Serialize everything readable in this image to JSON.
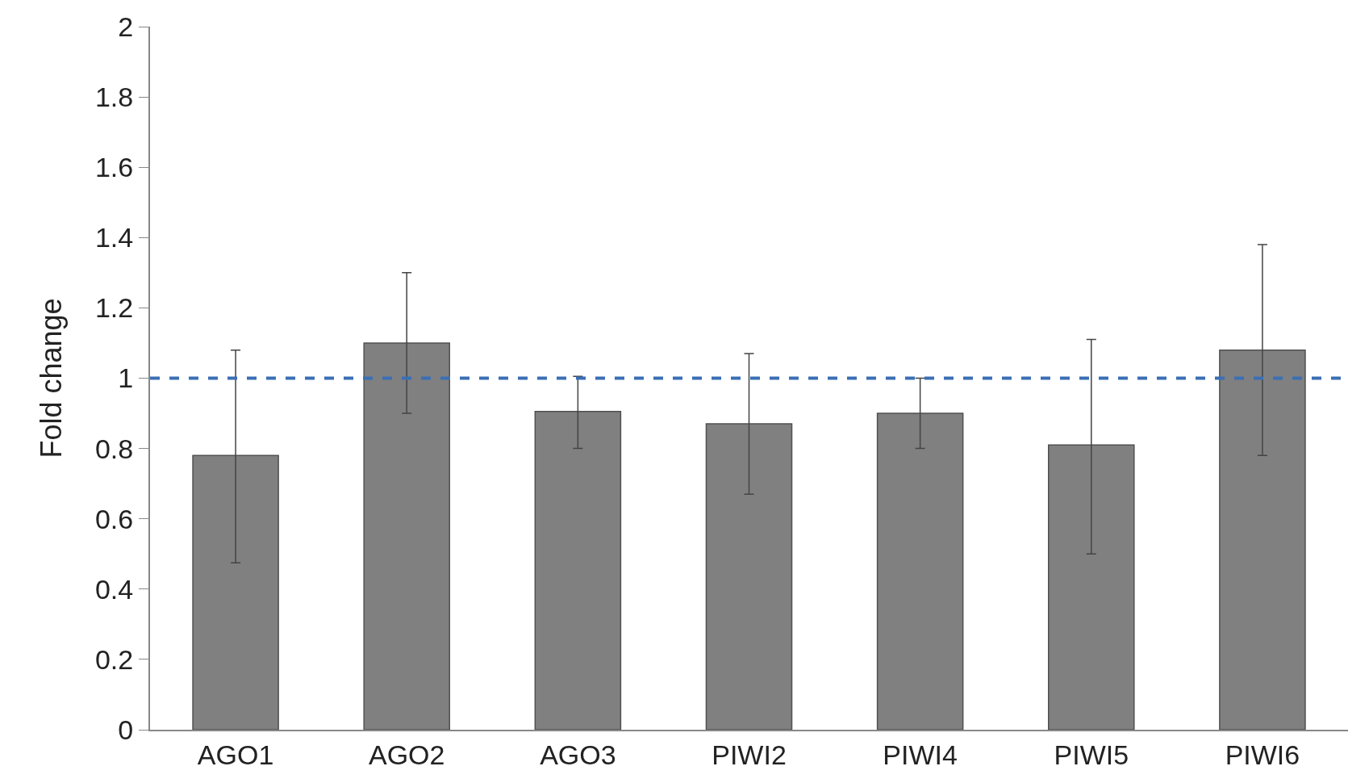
{
  "chart_data": {
    "type": "bar",
    "ylabel": "Fold change",
    "categories": [
      "AGO1",
      "AGO2",
      "AGO3",
      "PIWI2",
      "PIWI4",
      "PIWI5",
      "PIWI6"
    ],
    "values": [
      0.78,
      1.1,
      0.905,
      0.87,
      0.9,
      0.81,
      1.08
    ],
    "errors": [
      [
        0.475,
        1.08
      ],
      [
        0.9,
        1.3
      ],
      [
        0.8,
        1.005
      ],
      [
        0.67,
        1.07
      ],
      [
        0.8,
        1.0
      ],
      [
        0.5,
        1.11
      ],
      [
        0.78,
        1.38
      ]
    ],
    "color": "#808080",
    "ylim": [
      0,
      2
    ],
    "yticks": [
      0,
      0.2,
      0.4,
      0.6,
      0.8,
      1,
      1.2,
      1.4,
      1.6,
      1.8,
      2
    ],
    "ref_lines": [
      {
        "axis": "y",
        "value": 1,
        "color": "#3a6fb5",
        "line_style": "dashed"
      }
    ],
    "grid": false,
    "legend": false
  }
}
